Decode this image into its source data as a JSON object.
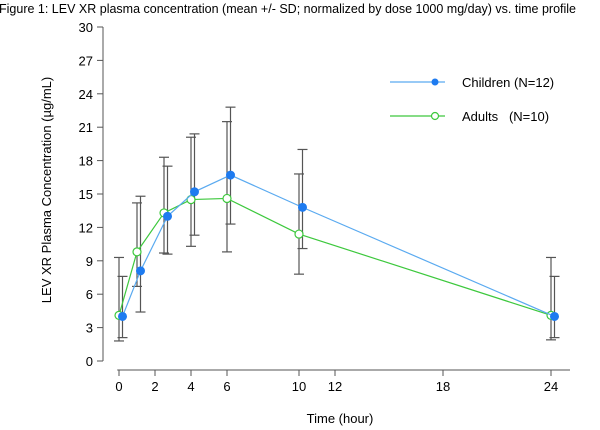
{
  "chart_data": {
    "type": "line",
    "title": "Figure 1: LEV XR plasma concentration (mean +/- SD; normalized by dose 1000 mg/day) vs. time profile",
    "xlabel": "Time (hour)",
    "ylabel": "LEV XR Plasma Concentration (µg/mL)",
    "xlim": [
      0,
      24
    ],
    "ylim": [
      0,
      30
    ],
    "xticks": [
      0,
      2,
      4,
      6,
      10,
      12,
      18,
      24
    ],
    "yticks": [
      0,
      3,
      6,
      9,
      12,
      15,
      18,
      21,
      24,
      27,
      30
    ],
    "grid": false,
    "legend_position": "top-right",
    "series": [
      {
        "name": "Children (N=12)",
        "marker": "filled-circle",
        "line_color": "#5AAAF0",
        "marker_color": "#1E7BF0",
        "x": [
          0,
          1,
          2.5,
          4,
          6,
          10,
          24
        ],
        "y": [
          4.0,
          8.1,
          13.0,
          15.2,
          16.7,
          13.8,
          4.0
        ],
        "sd_low": [
          2.1,
          4.4,
          9.6,
          11.3,
          12.3,
          10.1,
          2.1
        ],
        "sd_high": [
          7.6,
          14.8,
          17.5,
          20.4,
          22.8,
          19.0,
          7.6
        ]
      },
      {
        "name": "Adults   (N=10)",
        "marker": "open-circle",
        "line_color": "#3DC83D",
        "marker_color": "#3DC83D",
        "x": [
          0,
          1,
          2.5,
          4,
          6,
          10,
          24
        ],
        "y": [
          4.1,
          9.8,
          13.3,
          14.5,
          14.6,
          11.4,
          4.1
        ],
        "sd_low": [
          1.8,
          6.7,
          9.7,
          10.3,
          9.8,
          7.8,
          1.9
        ],
        "sd_high": [
          9.3,
          14.2,
          18.3,
          20.1,
          21.5,
          16.8,
          9.3
        ]
      }
    ]
  }
}
